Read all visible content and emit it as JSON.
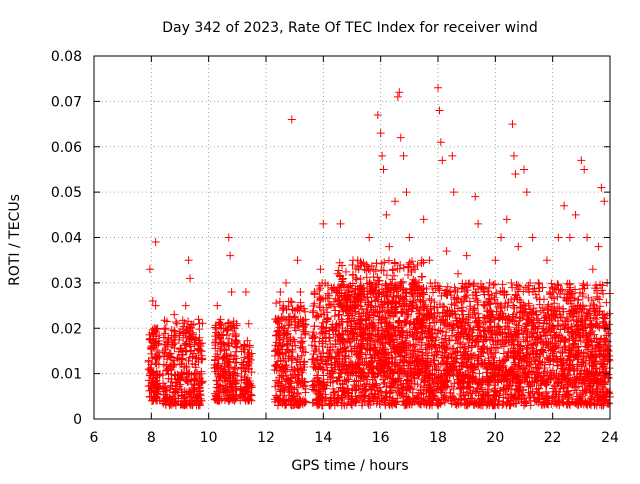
{
  "chart_data": {
    "type": "scatter",
    "title": "Day 342 of 2023, Rate Of TEC Index for receiver wind",
    "xlabel": "GPS time / hours",
    "ylabel": "ROTI / TECUs",
    "xlim": [
      6,
      24
    ],
    "ylim": [
      0,
      0.08
    ],
    "x_ticks": [
      "6",
      "8",
      "10",
      "12",
      "14",
      "16",
      "18",
      "20",
      "22",
      "24"
    ],
    "y_ticks": [
      "0",
      "0.01",
      "0.02",
      "0.03",
      "0.04",
      "0.05",
      "0.06",
      "0.07",
      "0.08"
    ],
    "grid": true,
    "marker": "+",
    "color": "#ff0000",
    "series": [
      {
        "points": [
          [
            7.95,
            0.033
          ],
          [
            8.05,
            0.026
          ],
          [
            8.15,
            0.039
          ],
          [
            8.1,
            0.02
          ],
          [
            8.0,
            0.012
          ],
          [
            8.05,
            0.008
          ],
          [
            8.1,
            0.005
          ],
          [
            8.2,
            0.015
          ],
          [
            8.15,
            0.025
          ],
          [
            8.4,
            0.015
          ],
          [
            8.5,
            0.02
          ],
          [
            8.6,
            0.01
          ],
          [
            8.8,
            0.023
          ],
          [
            8.9,
            0.008
          ],
          [
            9.0,
            0.012
          ],
          [
            9.2,
            0.025
          ],
          [
            9.3,
            0.035
          ],
          [
            9.35,
            0.031
          ],
          [
            9.4,
            0.018
          ],
          [
            9.5,
            0.01
          ],
          [
            9.6,
            0.005
          ],
          [
            9.65,
            0.003
          ],
          [
            9.7,
            0.015
          ],
          [
            10.3,
            0.025
          ],
          [
            10.4,
            0.015
          ],
          [
            10.5,
            0.01
          ],
          [
            10.6,
            0.02
          ],
          [
            10.7,
            0.04
          ],
          [
            10.75,
            0.036
          ],
          [
            10.8,
            0.028
          ],
          [
            10.9,
            0.02
          ],
          [
            11.0,
            0.01
          ],
          [
            11.1,
            0.005
          ],
          [
            11.2,
            0.012
          ],
          [
            11.3,
            0.028
          ],
          [
            11.4,
            0.021
          ],
          [
            12.5,
            0.028
          ],
          [
            12.6,
            0.02
          ],
          [
            12.7,
            0.03
          ],
          [
            12.8,
            0.015
          ],
          [
            12.9,
            0.066
          ],
          [
            13.0,
            0.022
          ],
          [
            13.1,
            0.035
          ],
          [
            13.2,
            0.028
          ],
          [
            13.3,
            0.012
          ],
          [
            13.7,
            0.015
          ],
          [
            13.9,
            0.033
          ],
          [
            14.0,
            0.043
          ],
          [
            14.1,
            0.02
          ],
          [
            14.3,
            0.01
          ],
          [
            14.5,
            0.032
          ],
          [
            14.6,
            0.043
          ],
          [
            14.8,
            0.012
          ],
          [
            15.0,
            0.028
          ],
          [
            15.2,
            0.035
          ],
          [
            15.4,
            0.02
          ],
          [
            15.6,
            0.04
          ],
          [
            15.8,
            0.03
          ],
          [
            15.9,
            0.067
          ],
          [
            16.0,
            0.063
          ],
          [
            16.05,
            0.058
          ],
          [
            16.1,
            0.055
          ],
          [
            16.2,
            0.045
          ],
          [
            16.3,
            0.038
          ],
          [
            16.5,
            0.048
          ],
          [
            16.6,
            0.071
          ],
          [
            16.65,
            0.072
          ],
          [
            16.7,
            0.062
          ],
          [
            16.8,
            0.058
          ],
          [
            16.9,
            0.05
          ],
          [
            17.0,
            0.04
          ],
          [
            17.2,
            0.033
          ],
          [
            17.5,
            0.044
          ],
          [
            17.7,
            0.035
          ],
          [
            17.9,
            0.03
          ],
          [
            18.0,
            0.073
          ],
          [
            18.05,
            0.068
          ],
          [
            18.1,
            0.061
          ],
          [
            18.15,
            0.057
          ],
          [
            18.3,
            0.037
          ],
          [
            18.5,
            0.058
          ],
          [
            18.55,
            0.05
          ],
          [
            18.7,
            0.032
          ],
          [
            19.0,
            0.036
          ],
          [
            19.3,
            0.049
          ],
          [
            19.4,
            0.043
          ],
          [
            19.6,
            0.028
          ],
          [
            19.8,
            0.03
          ],
          [
            20.0,
            0.035
          ],
          [
            20.2,
            0.04
          ],
          [
            20.4,
            0.044
          ],
          [
            20.6,
            0.065
          ],
          [
            20.65,
            0.058
          ],
          [
            20.7,
            0.054
          ],
          [
            20.8,
            0.038
          ],
          [
            21.0,
            0.055
          ],
          [
            21.1,
            0.05
          ],
          [
            21.3,
            0.04
          ],
          [
            21.5,
            0.03
          ],
          [
            21.8,
            0.035
          ],
          [
            22.0,
            0.028
          ],
          [
            22.2,
            0.04
          ],
          [
            22.4,
            0.047
          ],
          [
            22.6,
            0.04
          ],
          [
            22.8,
            0.045
          ],
          [
            23.0,
            0.057
          ],
          [
            23.1,
            0.055
          ],
          [
            23.2,
            0.04
          ],
          [
            23.4,
            0.033
          ],
          [
            23.6,
            0.038
          ],
          [
            23.7,
            0.051
          ],
          [
            23.8,
            0.048
          ],
          [
            23.9,
            0.03
          ],
          [
            14.2,
            0.018
          ],
          [
            14.7,
            0.024
          ],
          [
            15.1,
            0.016
          ],
          [
            15.3,
            0.022
          ],
          [
            15.5,
            0.012
          ],
          [
            15.7,
            0.02
          ],
          [
            16.4,
            0.026
          ],
          [
            16.75,
            0.018
          ],
          [
            17.1,
            0.015
          ],
          [
            17.3,
            0.022
          ],
          [
            17.6,
            0.012
          ],
          [
            17.8,
            0.019
          ],
          [
            18.2,
            0.016
          ],
          [
            18.4,
            0.011
          ],
          [
            18.6,
            0.023
          ],
          [
            18.8,
            0.014
          ],
          [
            19.1,
            0.02
          ],
          [
            19.5,
            0.012
          ],
          [
            19.7,
            0.018
          ],
          [
            19.9,
            0.01
          ],
          [
            20.3,
            0.016
          ],
          [
            20.5,
            0.022
          ],
          [
            20.9,
            0.013
          ],
          [
            21.2,
            0.018
          ],
          [
            21.4,
            0.009
          ],
          [
            21.6,
            0.015
          ],
          [
            21.9,
            0.012
          ],
          [
            22.1,
            0.018
          ],
          [
            22.3,
            0.008
          ],
          [
            22.5,
            0.02
          ],
          [
            22.7,
            0.012
          ],
          [
            22.9,
            0.016
          ],
          [
            23.3,
            0.01
          ],
          [
            23.5,
            0.014
          ],
          [
            23.75,
            0.008
          ],
          [
            23.95,
            0.015
          ],
          [
            14.4,
            0.004
          ],
          [
            15.0,
            0.003
          ],
          [
            16.2,
            0.006
          ],
          [
            17.0,
            0.004
          ],
          [
            18.5,
            0.005
          ],
          [
            19.2,
            0.004
          ],
          [
            20.0,
            0.006
          ],
          [
            21.0,
            0.003
          ],
          [
            22.0,
            0.005
          ],
          [
            23.0,
            0.004
          ],
          [
            23.9,
            0.006
          ]
        ]
      }
    ]
  }
}
